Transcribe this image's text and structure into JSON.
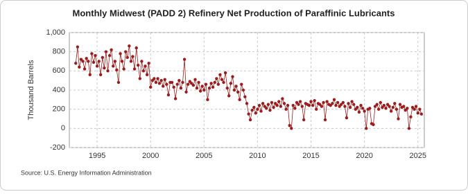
{
  "chart_data": {
    "type": "line",
    "title": "Monthly Midwest (PADD 2) Refinery Net Production of Paraffinic Lubricants",
    "y_label": "Thousand Barrels",
    "source": "Source: U.S. Energy Information Administration",
    "xlim": [
      1992.4,
      2025.6
    ],
    "xticks": [
      1995,
      2000,
      2005,
      2010,
      2015,
      2020,
      2025
    ],
    "ylim": [
      -200,
      1000
    ],
    "yticks": [
      -200,
      0,
      200,
      400,
      600,
      800,
      {
        "value": 1000,
        "label": "1,000"
      }
    ],
    "grid": true,
    "x": [
      1993.0,
      1993.17,
      1993.33,
      1993.5,
      1993.67,
      1993.83,
      1994.0,
      1994.17,
      1994.33,
      1994.5,
      1994.67,
      1994.83,
      1995.0,
      1995.17,
      1995.33,
      1995.5,
      1995.67,
      1995.83,
      1996.0,
      1996.17,
      1996.33,
      1996.5,
      1996.67,
      1996.83,
      1997.0,
      1997.17,
      1997.33,
      1997.5,
      1997.67,
      1997.83,
      1998.0,
      1998.17,
      1998.33,
      1998.5,
      1998.67,
      1998.83,
      1999.0,
      1999.17,
      1999.33,
      1999.5,
      1999.67,
      1999.83,
      2000.0,
      2000.17,
      2000.33,
      2000.5,
      2000.67,
      2000.83,
      2001.0,
      2001.17,
      2001.33,
      2001.5,
      2001.67,
      2001.83,
      2002.0,
      2002.17,
      2002.33,
      2002.5,
      2002.67,
      2002.83,
      2003.0,
      2003.17,
      2003.33,
      2003.5,
      2003.67,
      2003.83,
      2004.0,
      2004.17,
      2004.33,
      2004.5,
      2004.67,
      2004.83,
      2005.0,
      2005.17,
      2005.33,
      2005.5,
      2005.67,
      2005.83,
      2006.0,
      2006.17,
      2006.33,
      2006.5,
      2006.67,
      2006.83,
      2007.0,
      2007.17,
      2007.33,
      2007.5,
      2007.67,
      2007.83,
      2008.0,
      2008.17,
      2008.33,
      2008.5,
      2008.67,
      2008.83,
      2009.0,
      2009.17,
      2009.33,
      2009.5,
      2009.67,
      2009.83,
      2010.0,
      2010.17,
      2010.33,
      2010.5,
      2010.67,
      2010.83,
      2011.0,
      2011.17,
      2011.33,
      2011.5,
      2011.67,
      2011.83,
      2012.0,
      2012.17,
      2012.33,
      2012.5,
      2012.67,
      2012.83,
      2013.0,
      2013.17,
      2013.33,
      2013.5,
      2013.67,
      2013.83,
      2014.0,
      2014.17,
      2014.33,
      2014.5,
      2014.67,
      2014.83,
      2015.0,
      2015.17,
      2015.33,
      2015.5,
      2015.67,
      2015.83,
      2016.0,
      2016.17,
      2016.33,
      2016.5,
      2016.67,
      2016.83,
      2017.0,
      2017.17,
      2017.33,
      2017.5,
      2017.67,
      2017.83,
      2018.0,
      2018.17,
      2018.33,
      2018.5,
      2018.67,
      2018.83,
      2019.0,
      2019.17,
      2019.33,
      2019.5,
      2019.67,
      2019.83,
      2020.0,
      2020.17,
      2020.33,
      2020.5,
      2020.67,
      2020.83,
      2021.0,
      2021.17,
      2021.33,
      2021.5,
      2021.67,
      2021.83,
      2022.0,
      2022.17,
      2022.33,
      2022.5,
      2022.67,
      2022.83,
      2023.0,
      2023.17,
      2023.33,
      2023.5,
      2023.67,
      2023.83,
      2024.0,
      2024.17,
      2024.33,
      2024.5,
      2024.67,
      2024.83,
      2025.0,
      2025.17,
      2025.33
    ],
    "series": [
      {
        "color": "#9b1c1c",
        "values": [
          680,
          850,
          640,
          720,
          700,
          620,
          730,
          700,
          560,
          780,
          690,
          760,
          650,
          700,
          560,
          740,
          630,
          800,
          600,
          760,
          820,
          650,
          700,
          610,
          480,
          780,
          700,
          620,
          800,
          740,
          860,
          700,
          750,
          620,
          840,
          660,
          520,
          700,
          600,
          650,
          560,
          680,
          430,
          500,
          520,
          480,
          520,
          470,
          500,
          440,
          510,
          460,
          350,
          480,
          480,
          430,
          310,
          460,
          500,
          420,
          480,
          720,
          380,
          460,
          490,
          470,
          450,
          510,
          420,
          480,
          390,
          440,
          400,
          460,
          300,
          420,
          470,
          430,
          480,
          520,
          460,
          560,
          510,
          480,
          580,
          420,
          340,
          470,
          540,
          400,
          440,
          380,
          300,
          460,
          400,
          330,
          260,
          150,
          90,
          190,
          220,
          160,
          200,
          240,
          180,
          260,
          230,
          210,
          250,
          190,
          270,
          220,
          260,
          240,
          280,
          230,
          310,
          260,
          200,
          240,
          30,
          0,
          240,
          210,
          270,
          250,
          280,
          230,
          90,
          260,
          250,
          240,
          280,
          240,
          290,
          200,
          260,
          250,
          230,
          270,
          90,
          280,
          250,
          240,
          260,
          300,
          240,
          270,
          230,
          250,
          270,
          230,
          110,
          260,
          220,
          280,
          250,
          200,
          220,
          170,
          240,
          210,
          180,
          0,
          200,
          210,
          50,
          40,
          230,
          250,
          200,
          270,
          220,
          240,
          210,
          250,
          230,
          180,
          220,
          260,
          200,
          100,
          250,
          220,
          230,
          190,
          210,
          0,
          120,
          220,
          200,
          230,
          160,
          200,
          150
        ]
      }
    ]
  }
}
